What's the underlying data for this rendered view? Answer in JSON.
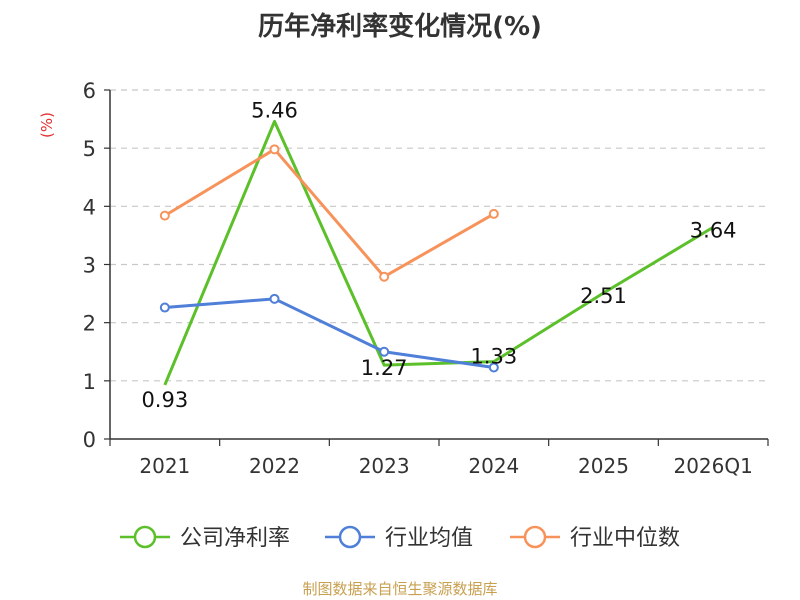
{
  "chart_data": {
    "type": "line",
    "title": "历年净利率变化情况(%)",
    "ylabel": "(%)",
    "categories": [
      "2021",
      "2022",
      "2023",
      "2024",
      "2025",
      "2026Q1"
    ],
    "ylim": [
      0,
      6
    ],
    "yticks": [
      "0",
      "1",
      "2",
      "3",
      "4",
      "5",
      "6"
    ],
    "grid": true,
    "legend_position": "bottom",
    "series": [
      {
        "name": "公司净利率",
        "color": "#5bc02a",
        "values": [
          0.93,
          5.46,
          1.27,
          1.33,
          2.51,
          3.64
        ],
        "labels": [
          "0.93",
          "5.46",
          "1.27",
          "1.33",
          "2.51",
          "3.64"
        ]
      },
      {
        "name": "行业均值",
        "color": "#4f7fd8",
        "values": [
          2.26,
          2.41,
          1.5,
          1.23,
          null,
          null
        ]
      },
      {
        "name": "行业中位数",
        "color": "#f7935a",
        "values": [
          3.84,
          4.98,
          2.79,
          3.87,
          null,
          null
        ]
      }
    ]
  },
  "source_note": "制图数据来自恒生聚源数据库"
}
